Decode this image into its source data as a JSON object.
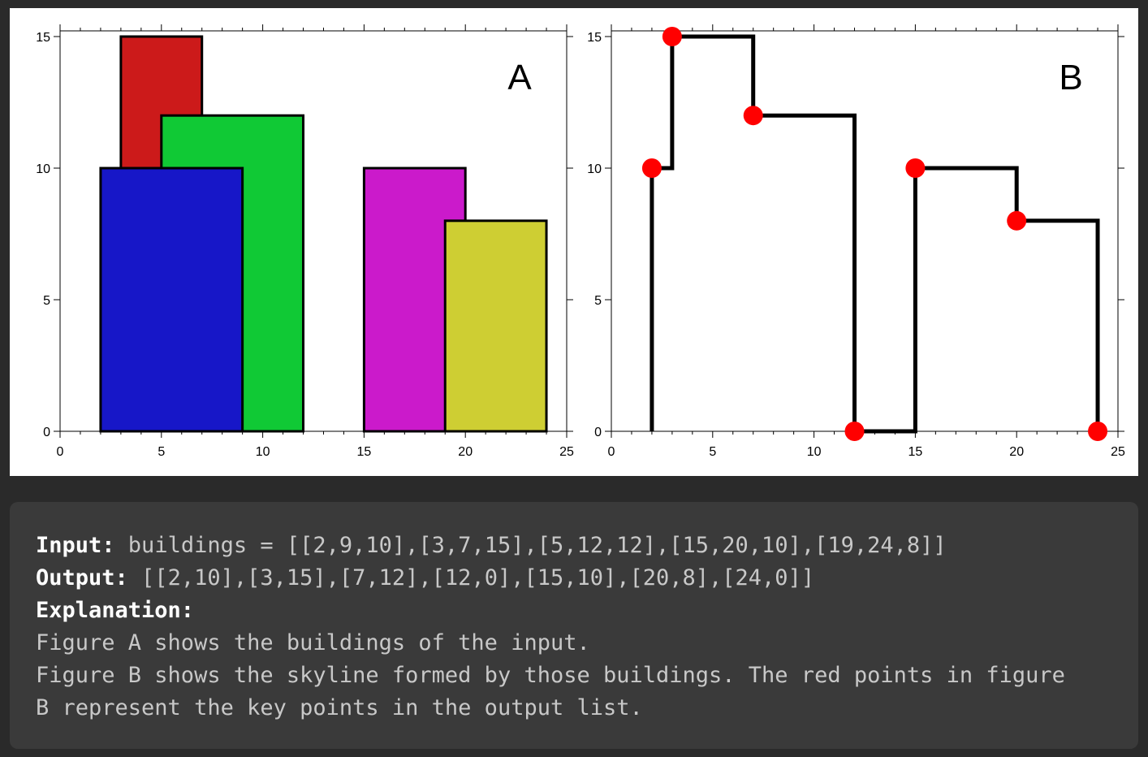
{
  "chart_data": [
    {
      "type": "bar",
      "panel_label": "A",
      "xlim": [
        0,
        25
      ],
      "ylim": [
        0,
        15
      ],
      "x_ticks": [
        "0",
        "5",
        "10",
        "15",
        "20",
        "25"
      ],
      "y_ticks": [
        "0",
        "5",
        "10",
        "15"
      ],
      "buildings": [
        {
          "left": 3,
          "right": 7,
          "height": 15,
          "color": "#cc1a1a"
        },
        {
          "left": 5,
          "right": 12,
          "height": 12,
          "color": "#10c935"
        },
        {
          "left": 2,
          "right": 9,
          "height": 10,
          "color": "#1717c8"
        },
        {
          "left": 15,
          "right": 20,
          "height": 10,
          "color": "#cb1acb"
        },
        {
          "left": 19,
          "right": 24,
          "height": 8,
          "color": "#cece33"
        }
      ]
    },
    {
      "type": "line",
      "panel_label": "B",
      "xlim": [
        0,
        25
      ],
      "ylim": [
        0,
        15
      ],
      "x_ticks": [
        "0",
        "5",
        "10",
        "15",
        "20",
        "25"
      ],
      "y_ticks": [
        "0",
        "5",
        "10",
        "15"
      ],
      "start_x": 2,
      "key_points": [
        [
          2,
          10
        ],
        [
          3,
          15
        ],
        [
          7,
          12
        ],
        [
          12,
          0
        ],
        [
          15,
          10
        ],
        [
          20,
          8
        ],
        [
          24,
          0
        ]
      ],
      "line_color": "#000000",
      "point_color": "#ff0000"
    }
  ],
  "explanation": {
    "input_label": "Input:",
    "input_value": " buildings = [[2,9,10],[3,7,15],[5,12,12],[15,20,10],[19,24,8]]",
    "output_label": "Output:",
    "output_value": " [[2,10],[3,15],[7,12],[12,0],[15,10],[20,8],[24,0]]",
    "explanation_label": "Explanation:",
    "line1": "Figure A shows the buildings of the input.",
    "line2": "Figure B shows the skyline formed by those buildings. The red points in figure",
    "line3": "B represent the key points in the output list."
  }
}
